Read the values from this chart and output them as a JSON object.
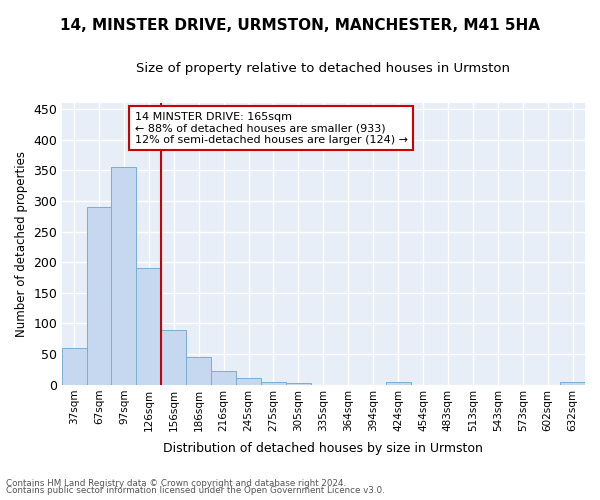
{
  "title": "14, MINSTER DRIVE, URMSTON, MANCHESTER, M41 5HA",
  "subtitle": "Size of property relative to detached houses in Urmston",
  "xlabel": "Distribution of detached houses by size in Urmston",
  "ylabel": "Number of detached properties",
  "footnote1": "Contains HM Land Registry data © Crown copyright and database right 2024.",
  "footnote2": "Contains public sector information licensed under the Open Government Licence v3.0.",
  "annotation_line1": "14 MINSTER DRIVE: 165sqm",
  "annotation_line2": "← 88% of detached houses are smaller (933)",
  "annotation_line3": "12% of semi-detached houses are larger (124) →",
  "bar_labels": [
    "37sqm",
    "67sqm",
    "97sqm",
    "126sqm",
    "156sqm",
    "186sqm",
    "216sqm",
    "245sqm",
    "275sqm",
    "305sqm",
    "335sqm",
    "364sqm",
    "394sqm",
    "424sqm",
    "454sqm",
    "483sqm",
    "513sqm",
    "543sqm",
    "573sqm",
    "602sqm",
    "632sqm"
  ],
  "bar_values": [
    59,
    290,
    355,
    191,
    90,
    45,
    22,
    10,
    5,
    3,
    0,
    0,
    0,
    4,
    0,
    0,
    0,
    0,
    0,
    0,
    4
  ],
  "bar_color": "#c5d8f0",
  "bar_edge_color": "#7aadd4",
  "vline_color": "#cc0000",
  "vline_x_index": 4,
  "annotation_box_color": "#cc0000",
  "annotation_text_color": "#000000",
  "bg_color": "#ffffff",
  "plot_bg_color": "#e8eef7",
  "grid_color": "#ffffff",
  "ylim": [
    0,
    460
  ],
  "yticks": [
    0,
    50,
    100,
    150,
    200,
    250,
    300,
    350,
    400,
    450
  ],
  "title_fontsize": 11,
  "subtitle_fontsize": 9.5
}
